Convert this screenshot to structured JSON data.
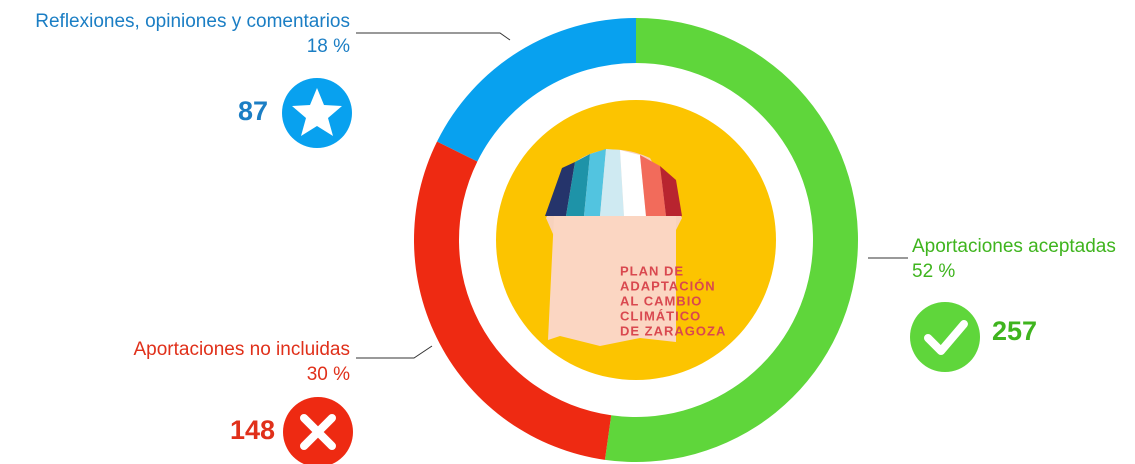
{
  "chart_data": {
    "type": "donut",
    "categories": [
      "Aportaciones aceptadas",
      "Aportaciones no incluidas",
      "Reflexiones, opiniones y comentarios"
    ],
    "values": [
      257,
      148,
      87
    ],
    "percent_labels": [
      "52 %",
      "30 %",
      "18 %"
    ],
    "series_colors": [
      "#5fd63b",
      "#ee2a12",
      "#08a1ef"
    ],
    "label_colors": [
      "#3fb41e",
      "#e0301a",
      "#1b7ec4"
    ]
  },
  "logo_text": [
    "PLAN DE",
    "ADAPTACIÓN",
    "AL CAMBIO",
    "CLIMÁTICO",
    "DE ZARAGOZA"
  ]
}
